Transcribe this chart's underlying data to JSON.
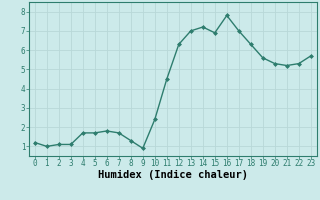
{
  "x": [
    0,
    1,
    2,
    3,
    4,
    5,
    6,
    7,
    8,
    9,
    10,
    11,
    12,
    13,
    14,
    15,
    16,
    17,
    18,
    19,
    20,
    21,
    22,
    23
  ],
  "y": [
    1.2,
    1.0,
    1.1,
    1.1,
    1.7,
    1.7,
    1.8,
    1.7,
    1.3,
    0.9,
    2.4,
    4.5,
    6.3,
    7.0,
    7.2,
    6.9,
    7.8,
    7.0,
    6.3,
    5.6,
    5.3,
    5.2,
    5.3,
    5.7
  ],
  "line_color": "#2e7d6e",
  "marker_color": "#2e7d6e",
  "bg_color": "#cceaea",
  "grid_color": "#b8d8d8",
  "xlabel": "Humidex (Indice chaleur)",
  "xlabel_fontsize": 7.5,
  "ylim": [
    0.5,
    8.5
  ],
  "xlim": [
    -0.5,
    23.5
  ],
  "yticks": [
    1,
    2,
    3,
    4,
    5,
    6,
    7,
    8
  ],
  "xticks": [
    0,
    1,
    2,
    3,
    4,
    5,
    6,
    7,
    8,
    9,
    10,
    11,
    12,
    13,
    14,
    15,
    16,
    17,
    18,
    19,
    20,
    21,
    22,
    23
  ],
  "tick_fontsize": 5.5,
  "title": ""
}
